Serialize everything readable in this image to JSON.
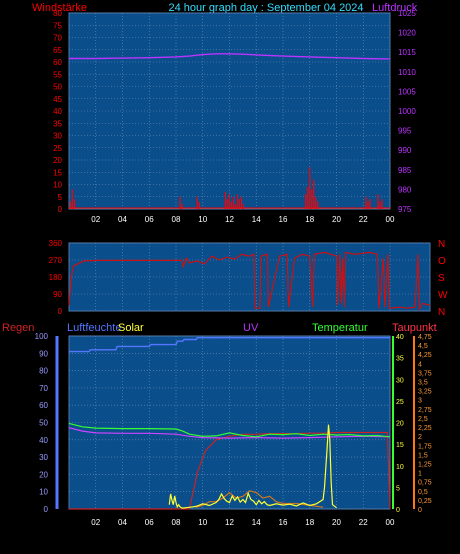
{
  "header": {
    "left_label": "Windstärke",
    "title": "24 hour graph day : September 04 2024",
    "right_label": "Luftdruck"
  },
  "colors": {
    "plot_bg": "#0a4e8c",
    "grid": "#6f8fb5",
    "wind": "#ff0000",
    "pressure": "#bb33ff",
    "direction": "#cc1111",
    "humidity": "#5577ff",
    "temperature": "#33ff33",
    "dewpoint": "#cc44ff",
    "solar": "#ffff33",
    "uv": "#7777ff",
    "rain": "#cc2222",
    "axis_text": "#ffffff"
  },
  "chart_data": [
    {
      "type": "line",
      "title": "24 hour graph day : September 04 2024",
      "ylabel": "Windstärke",
      "y2label": "Luftdruck",
      "x_ticks": [
        "02",
        "04",
        "06",
        "08",
        "10",
        "12",
        "14",
        "16",
        "18",
        "20",
        "22",
        "00"
      ],
      "ylim": [
        0,
        80
      ],
      "y_ticks": [
        "0",
        "5",
        "10",
        "15",
        "20",
        "25",
        "30",
        "35",
        "40",
        "45",
        "50",
        "55",
        "60",
        "65",
        "70",
        "75",
        "80"
      ],
      "y2lim": [
        975,
        1025
      ],
      "y2_ticks": [
        "975",
        "980",
        "985",
        "990",
        "995",
        "1000",
        "1005",
        "1010",
        "1015",
        "1020",
        "1025"
      ],
      "grid": true,
      "series": [
        {
          "name": "Luftdruck",
          "axis": "right",
          "x": [
            0,
            2,
            4,
            6,
            8,
            9,
            10,
            11,
            12,
            13,
            14,
            16,
            18,
            20,
            22,
            24
          ],
          "y": [
            1013.4,
            1013.4,
            1013.5,
            1013.6,
            1013.8,
            1014.0,
            1014.4,
            1014.6,
            1014.6,
            1014.5,
            1014.3,
            1014.0,
            1013.8,
            1013.6,
            1013.4,
            1013.3
          ]
        },
        {
          "name": "Windstärke",
          "axis": "left",
          "style": "spikes",
          "x": [
            0.1,
            0.25,
            0.4,
            8.3,
            8.45,
            9.6,
            9.75,
            11.7,
            11.85,
            12.0,
            12.15,
            12.3,
            12.45,
            12.6,
            12.75,
            12.9,
            13.05,
            17.7,
            17.85,
            18.0,
            18.15,
            18.3,
            18.45,
            18.6,
            22.2,
            22.35,
            22.5,
            23.1,
            23.25,
            23.4
          ],
          "y": [
            3,
            8,
            4,
            5,
            2,
            5,
            3,
            7,
            4,
            6,
            3,
            5,
            2,
            6,
            4,
            5,
            2,
            6,
            9,
            17,
            8,
            12,
            5,
            3,
            5,
            3,
            4,
            6,
            3,
            4
          ]
        }
      ]
    },
    {
      "type": "line",
      "ylabel": "",
      "ylim": [
        0,
        360
      ],
      "y_ticks": [
        "0",
        "90",
        "180",
        "270",
        "360"
      ],
      "y2_ticks": [
        "N",
        "W",
        "S",
        "O",
        "N"
      ],
      "grid": true,
      "series": [
        {
          "name": "Windrichtung",
          "axis": "left",
          "x": [
            0,
            0.15,
            0.3,
            0.6,
            1.0,
            2.0,
            4.0,
            6.0,
            7.5,
            7.6,
            7.8,
            8.0,
            8.5,
            9.0,
            9.5,
            10.0,
            10.5,
            11.0,
            11.5,
            12.0,
            12.3,
            12.35,
            12.7,
            12.75,
            13.2,
            13.25,
            14.0,
            14.5,
            14.6,
            15.0,
            15.5,
            16.0,
            16.2,
            16.3,
            17.0,
            17.8,
            17.85,
            18.0,
            18.1,
            18.2,
            18.3,
            18.4,
            19.0,
            20.0,
            20.5,
            20.6,
            20.9,
            21.0,
            21.2,
            21.3,
            22.0,
            22.5,
            23.0,
            23.2,
            23.3,
            23.5,
            24.0
          ],
          "y": [
            30,
            180,
            240,
            250,
            265,
            268,
            268,
            268,
            268,
            235,
            280,
            255,
            265,
            250,
            290,
            270,
            285,
            275,
            300,
            290,
            300,
            15,
            15,
            290,
            300,
            20,
            290,
            300,
            20,
            280,
            300,
            290,
            20,
            300,
            310,
            290,
            30,
            300,
            40,
            280,
            20,
            310,
            300,
            310,
            300,
            15,
            280,
            20,
            300,
            15,
            20,
            15,
            20,
            300,
            10,
            40,
            30
          ]
        }
      ]
    },
    {
      "type": "line",
      "header_labels": [
        "Regen",
        "Luftfeuchte",
        "Solar",
        "UV",
        "Temperatur",
        "Taupunkt"
      ],
      "x_ticks": [
        "02",
        "04",
        "06",
        "08",
        "10",
        "12",
        "14",
        "16",
        "18",
        "20",
        "22",
        "00"
      ],
      "ylim": [
        0,
        100
      ],
      "y_ticks": [
        "0",
        "10",
        "20",
        "30",
        "40",
        "50",
        "60",
        "70",
        "80",
        "90",
        "100"
      ],
      "y2lim": [
        0,
        40
      ],
      "y2_ticks": [
        "0",
        "5",
        "10",
        "15",
        "20",
        "25",
        "30",
        "35",
        "40"
      ],
      "y3lim": [
        0,
        4.75
      ],
      "y3_ticks": [
        "0",
        "0,25",
        "0,5",
        "0,75",
        "1",
        "1,25",
        "1,5",
        "1,75",
        "2",
        "2,25",
        "2,5",
        "2,75",
        "3",
        "3,25",
        "3,5",
        "3,75",
        "4",
        "4,25",
        "4,5",
        "4,75"
      ],
      "grid": true,
      "series": [
        {
          "name": "Luftfeuchte",
          "axis": "left",
          "x": [
            0,
            1.5,
            1.6,
            3.5,
            3.6,
            6.0,
            6.1,
            8.0,
            8.1,
            8.5,
            8.6,
            9.5,
            9.6,
            10.5,
            11.0,
            12.0,
            14.0,
            16.0,
            18.0,
            20.0,
            22.0,
            24.0
          ],
          "y": [
            91,
            91,
            92,
            92,
            94,
            94,
            95,
            95,
            97,
            97,
            98,
            98,
            99,
            99,
            99,
            99,
            99,
            99,
            99,
            99,
            99,
            99
          ]
        },
        {
          "name": "Temperatur",
          "axis": "right",
          "x": [
            0,
            1,
            2,
            4,
            6,
            8,
            8.5,
            9,
            10,
            11,
            12,
            13,
            14,
            15,
            16,
            17,
            18,
            19,
            20,
            21,
            22,
            23,
            24
          ],
          "y": [
            19.8,
            19.0,
            18.7,
            18.6,
            18.6,
            18.5,
            18.0,
            17.3,
            16.8,
            16.9,
            17.6,
            17.0,
            16.7,
            17.3,
            17.2,
            17.4,
            17.0,
            17.3,
            17.1,
            17.2,
            16.9,
            17.0,
            16.7
          ]
        },
        {
          "name": "Taupunkt",
          "axis": "right",
          "x": [
            0,
            1,
            2,
            4,
            6,
            8,
            9,
            10,
            12,
            14,
            16,
            18,
            20,
            22,
            24
          ],
          "y": [
            18.8,
            18.0,
            17.6,
            17.5,
            17.5,
            17.3,
            16.8,
            16.5,
            16.4,
            16.5,
            16.4,
            16.5,
            16.7,
            16.8,
            16.7
          ]
        },
        {
          "name": "Solar",
          "axis": "right",
          "x": [
            7.5,
            7.6,
            7.7,
            7.8,
            7.9,
            8.0,
            8.1,
            8.2,
            8.3,
            8.4,
            8.5,
            9.0,
            9.5,
            10.0,
            10.5,
            11.0,
            11.2,
            11.4,
            11.6,
            11.8,
            12.0,
            12.2,
            12.4,
            12.6,
            12.8,
            13.0,
            13.2,
            13.4,
            13.6,
            13.8,
            14.0,
            14.2,
            14.4,
            14.6,
            14.8,
            15.0,
            15.5,
            16.0,
            16.5,
            17.0,
            17.5,
            18.0,
            18.5,
            19.0,
            19.1,
            19.2,
            19.3,
            19.4,
            19.5,
            19.6,
            19.7,
            20.0
          ],
          "y": [
            1,
            3.5,
            2,
            1,
            3,
            1.5,
            0.5,
            1,
            0.5,
            0.3,
            0.2,
            0.4,
            0.6,
            1.2,
            0.8,
            1.5,
            2.2,
            3.5,
            2.4,
            1.8,
            1.5,
            3.0,
            2.0,
            2.8,
            1.6,
            2.2,
            1.5,
            3.6,
            2.2,
            1.8,
            1.0,
            2.0,
            1.2,
            1.7,
            1.0,
            0.8,
            1.2,
            0.9,
            1.1,
            0.7,
            1.4,
            0.8,
            1.2,
            2.2,
            5.0,
            9.5,
            14.0,
            19.5,
            16.0,
            6.0,
            1.0,
            0.3
          ]
        },
        {
          "name": "UV",
          "axis": "right3",
          "x": [
            9.5,
            10.0,
            10.5,
            11.0,
            11.5,
            12.0,
            12.5,
            13.0,
            13.5,
            14.0,
            14.5,
            15.0,
            15.5,
            16.0,
            17.0,
            18.0,
            19.0
          ],
          "y": [
            0.05,
            0.1,
            0.2,
            0.2,
            0.3,
            0.45,
            0.3,
            0.35,
            0.5,
            0.45,
            0.3,
            0.35,
            0.2,
            0.15,
            0.15,
            0.1,
            0.05
          ]
        },
        {
          "name": "Regen",
          "axis": "right3",
          "x": [
            0,
            9,
            9.6,
            10.2,
            11,
            12,
            13,
            14,
            15,
            16,
            17,
            18,
            19,
            20,
            22,
            23.8,
            24
          ],
          "y": [
            0,
            0,
            1.0,
            1.6,
            1.9,
            2.0,
            2.05,
            2.05,
            2.07,
            2.07,
            2.07,
            2.08,
            2.08,
            2.1,
            2.1,
            2.1,
            0
          ]
        }
      ]
    }
  ]
}
